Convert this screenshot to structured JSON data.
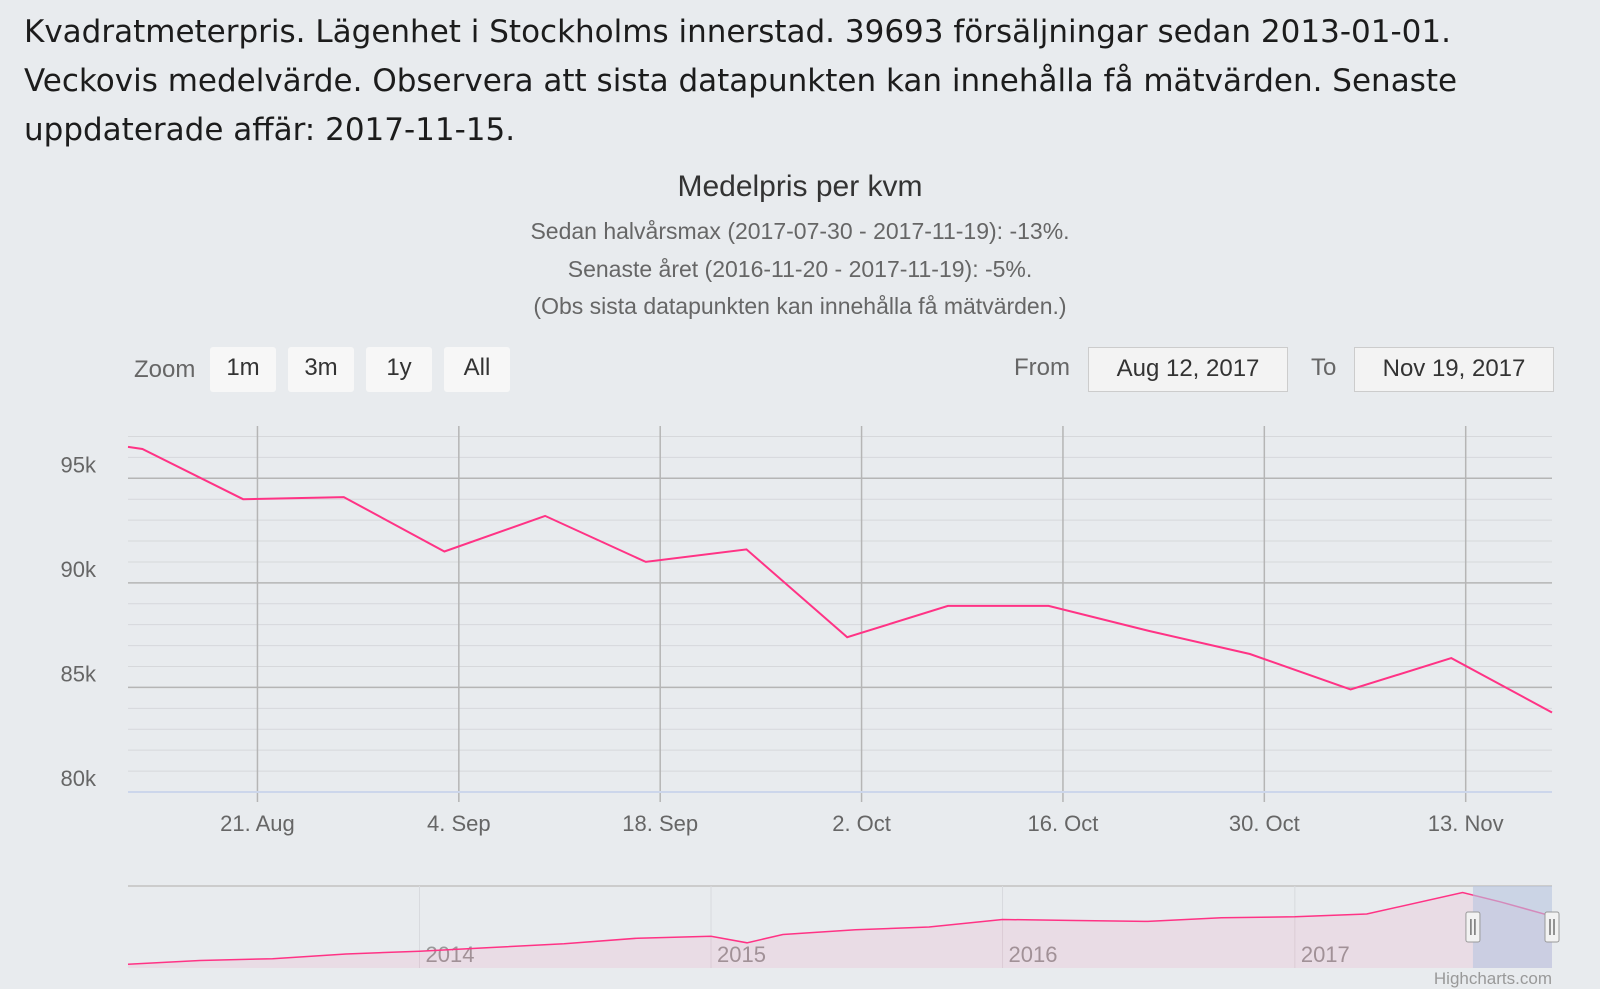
{
  "intro_text": "Kvadratmeterpris. Lägenhet i Stockholms innerstad. 39693 försäljningar sedan 2013-01-01. Veckovis medelvärde. Observera att sista datapunkten kan innehålla få mätvärden. Senaste uppdaterade affär: 2017-11-15.",
  "range_selector": {
    "zoom_label": "Zoom",
    "buttons": [
      "1m",
      "3m",
      "1y",
      "All"
    ],
    "from_label": "From",
    "from_value": "Aug 12, 2017",
    "to_label": "To",
    "to_value": "Nov 19, 2017"
  },
  "credits": "Highcharts.com",
  "colors": {
    "series": "#ff3385",
    "background": "#e8ebee",
    "navigator_mask": "#b8c4e0"
  },
  "chart_data": {
    "type": "line",
    "title": "Medelpris per kvm",
    "subtitle_lines": [
      "Sedan halvårsmax (2017-07-30 - 2017-11-19): -13%.",
      "Senaste året (2016-11-20 - 2017-11-19): -5%.",
      "(Obs sista datapunkten kan innehålla få mätvärden.)"
    ],
    "xlabel": "",
    "ylabel": "",
    "x_range": [
      "2017-08-12",
      "2017-11-19"
    ],
    "ylim": [
      80000,
      97500
    ],
    "y_ticks": [
      {
        "value": 80000,
        "label": "80k"
      },
      {
        "value": 85000,
        "label": "85k"
      },
      {
        "value": 90000,
        "label": "90k"
      },
      {
        "value": 95000,
        "label": "95k"
      }
    ],
    "x_ticks": [
      {
        "date": "2017-08-21",
        "label": "21. Aug"
      },
      {
        "date": "2017-09-04",
        "label": "4. Sep"
      },
      {
        "date": "2017-09-18",
        "label": "18. Sep"
      },
      {
        "date": "2017-10-02",
        "label": "2. Oct"
      },
      {
        "date": "2017-10-16",
        "label": "16. Oct"
      },
      {
        "date": "2017-10-30",
        "label": "30. Oct"
      },
      {
        "date": "2017-11-13",
        "label": "13. Nov"
      }
    ],
    "grid": true,
    "legend": "none",
    "series": [
      {
        "x": [
          "2017-08-12",
          "2017-08-13",
          "2017-08-20",
          "2017-08-27",
          "2017-09-03",
          "2017-09-10",
          "2017-09-17",
          "2017-09-24",
          "2017-10-01",
          "2017-10-08",
          "2017-10-15",
          "2017-10-22",
          "2017-10-29",
          "2017-11-05",
          "2017-11-12",
          "2017-11-19"
        ],
        "values": [
          96500,
          96400,
          94000,
          94100,
          91500,
          93200,
          91000,
          91600,
          87400,
          88900,
          88900,
          87700,
          86600,
          84900,
          86400,
          83800
        ]
      }
    ],
    "navigator": {
      "x_labels": [
        {
          "date": "2014-01-01",
          "label": "2014"
        },
        {
          "date": "2015-01-01",
          "label": "2015"
        },
        {
          "date": "2016-01-01",
          "label": "2016"
        },
        {
          "date": "2017-01-01",
          "label": "2017"
        }
      ],
      "x_range": [
        "2013-01-01",
        "2017-11-19"
      ],
      "selected_range": [
        "2017-08-12",
        "2017-11-19"
      ],
      "series_x": [
        "2013-01-01",
        "2013-04-01",
        "2013-07-01",
        "2013-10-01",
        "2014-01-01",
        "2014-04-01",
        "2014-07-01",
        "2014-10-01",
        "2015-01-01",
        "2015-02-15",
        "2015-04-01",
        "2015-07-01",
        "2015-10-01",
        "2016-01-01",
        "2016-04-01",
        "2016-07-01",
        "2016-10-01",
        "2017-01-01",
        "2017-04-01",
        "2017-07-30",
        "2017-09-15",
        "2017-11-19"
      ],
      "series_values": [
        58000,
        60000,
        61000,
        63500,
        65000,
        67000,
        69000,
        72000,
        73000,
        69500,
        74000,
        76500,
        78000,
        82000,
        81500,
        81000,
        83000,
        83500,
        85000,
        96500,
        91500,
        83800
      ]
    }
  }
}
